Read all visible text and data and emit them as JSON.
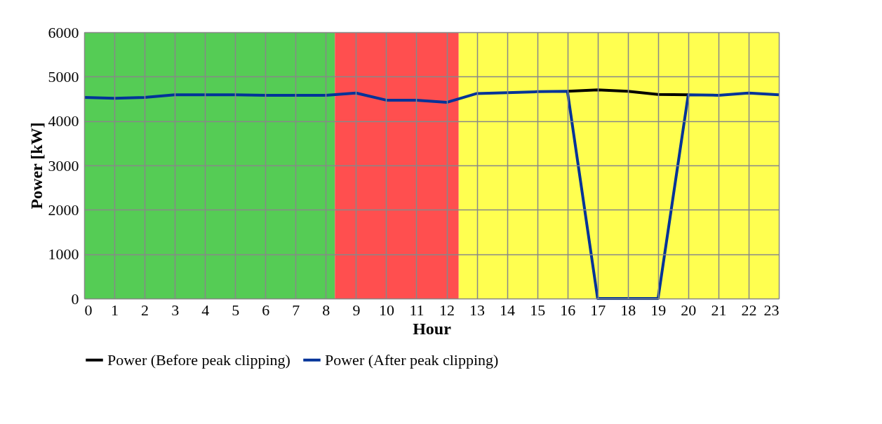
{
  "chart_data": {
    "type": "line",
    "xlabel": "Hour",
    "ylabel": "Power  [kW]",
    "x": [
      0,
      1,
      2,
      3,
      4,
      5,
      6,
      7,
      8,
      9,
      10,
      11,
      12,
      13,
      14,
      15,
      16,
      17,
      18,
      19,
      20,
      21,
      22,
      23
    ],
    "xlim": [
      0,
      23
    ],
    "xticks": [
      0,
      1,
      2,
      3,
      4,
      5,
      6,
      7,
      8,
      9,
      10,
      11,
      12,
      13,
      14,
      15,
      16,
      17,
      18,
      19,
      20,
      21,
      22,
      23
    ],
    "ylim": [
      0,
      6000
    ],
    "yticks": [
      0,
      1000,
      2000,
      3000,
      4000,
      5000,
      6000
    ],
    "series": [
      {
        "name": "Power (Before peak clipping)",
        "color": "#000000",
        "values": [
          null,
          null,
          null,
          null,
          null,
          null,
          null,
          null,
          null,
          null,
          null,
          null,
          null,
          null,
          null,
          null,
          4670,
          4700,
          4670,
          4600,
          4590,
          null,
          null,
          null
        ]
      },
      {
        "name": "Power (After peak clipping)",
        "color": "#003399",
        "values": [
          4530,
          4510,
          4530,
          4590,
          4590,
          4590,
          4580,
          4580,
          4580,
          4630,
          4470,
          4470,
          4420,
          4620,
          4640,
          4660,
          4670,
          0,
          0,
          0,
          4590,
          4580,
          4630,
          4590
        ]
      }
    ],
    "bands": [
      {
        "axis": "x",
        "from": 0,
        "to": 8.3,
        "label": null,
        "color": "#55cc55"
      },
      {
        "axis": "x",
        "from": 8.3,
        "to": 12.4,
        "label": null,
        "color": "#ff4f4f"
      },
      {
        "axis": "x",
        "from": 12.4,
        "to": 23,
        "label": null,
        "color": "#ffff50"
      }
    ],
    "grid": true,
    "legend": "bottom",
    "marker": "none",
    "line_style": "solid"
  }
}
